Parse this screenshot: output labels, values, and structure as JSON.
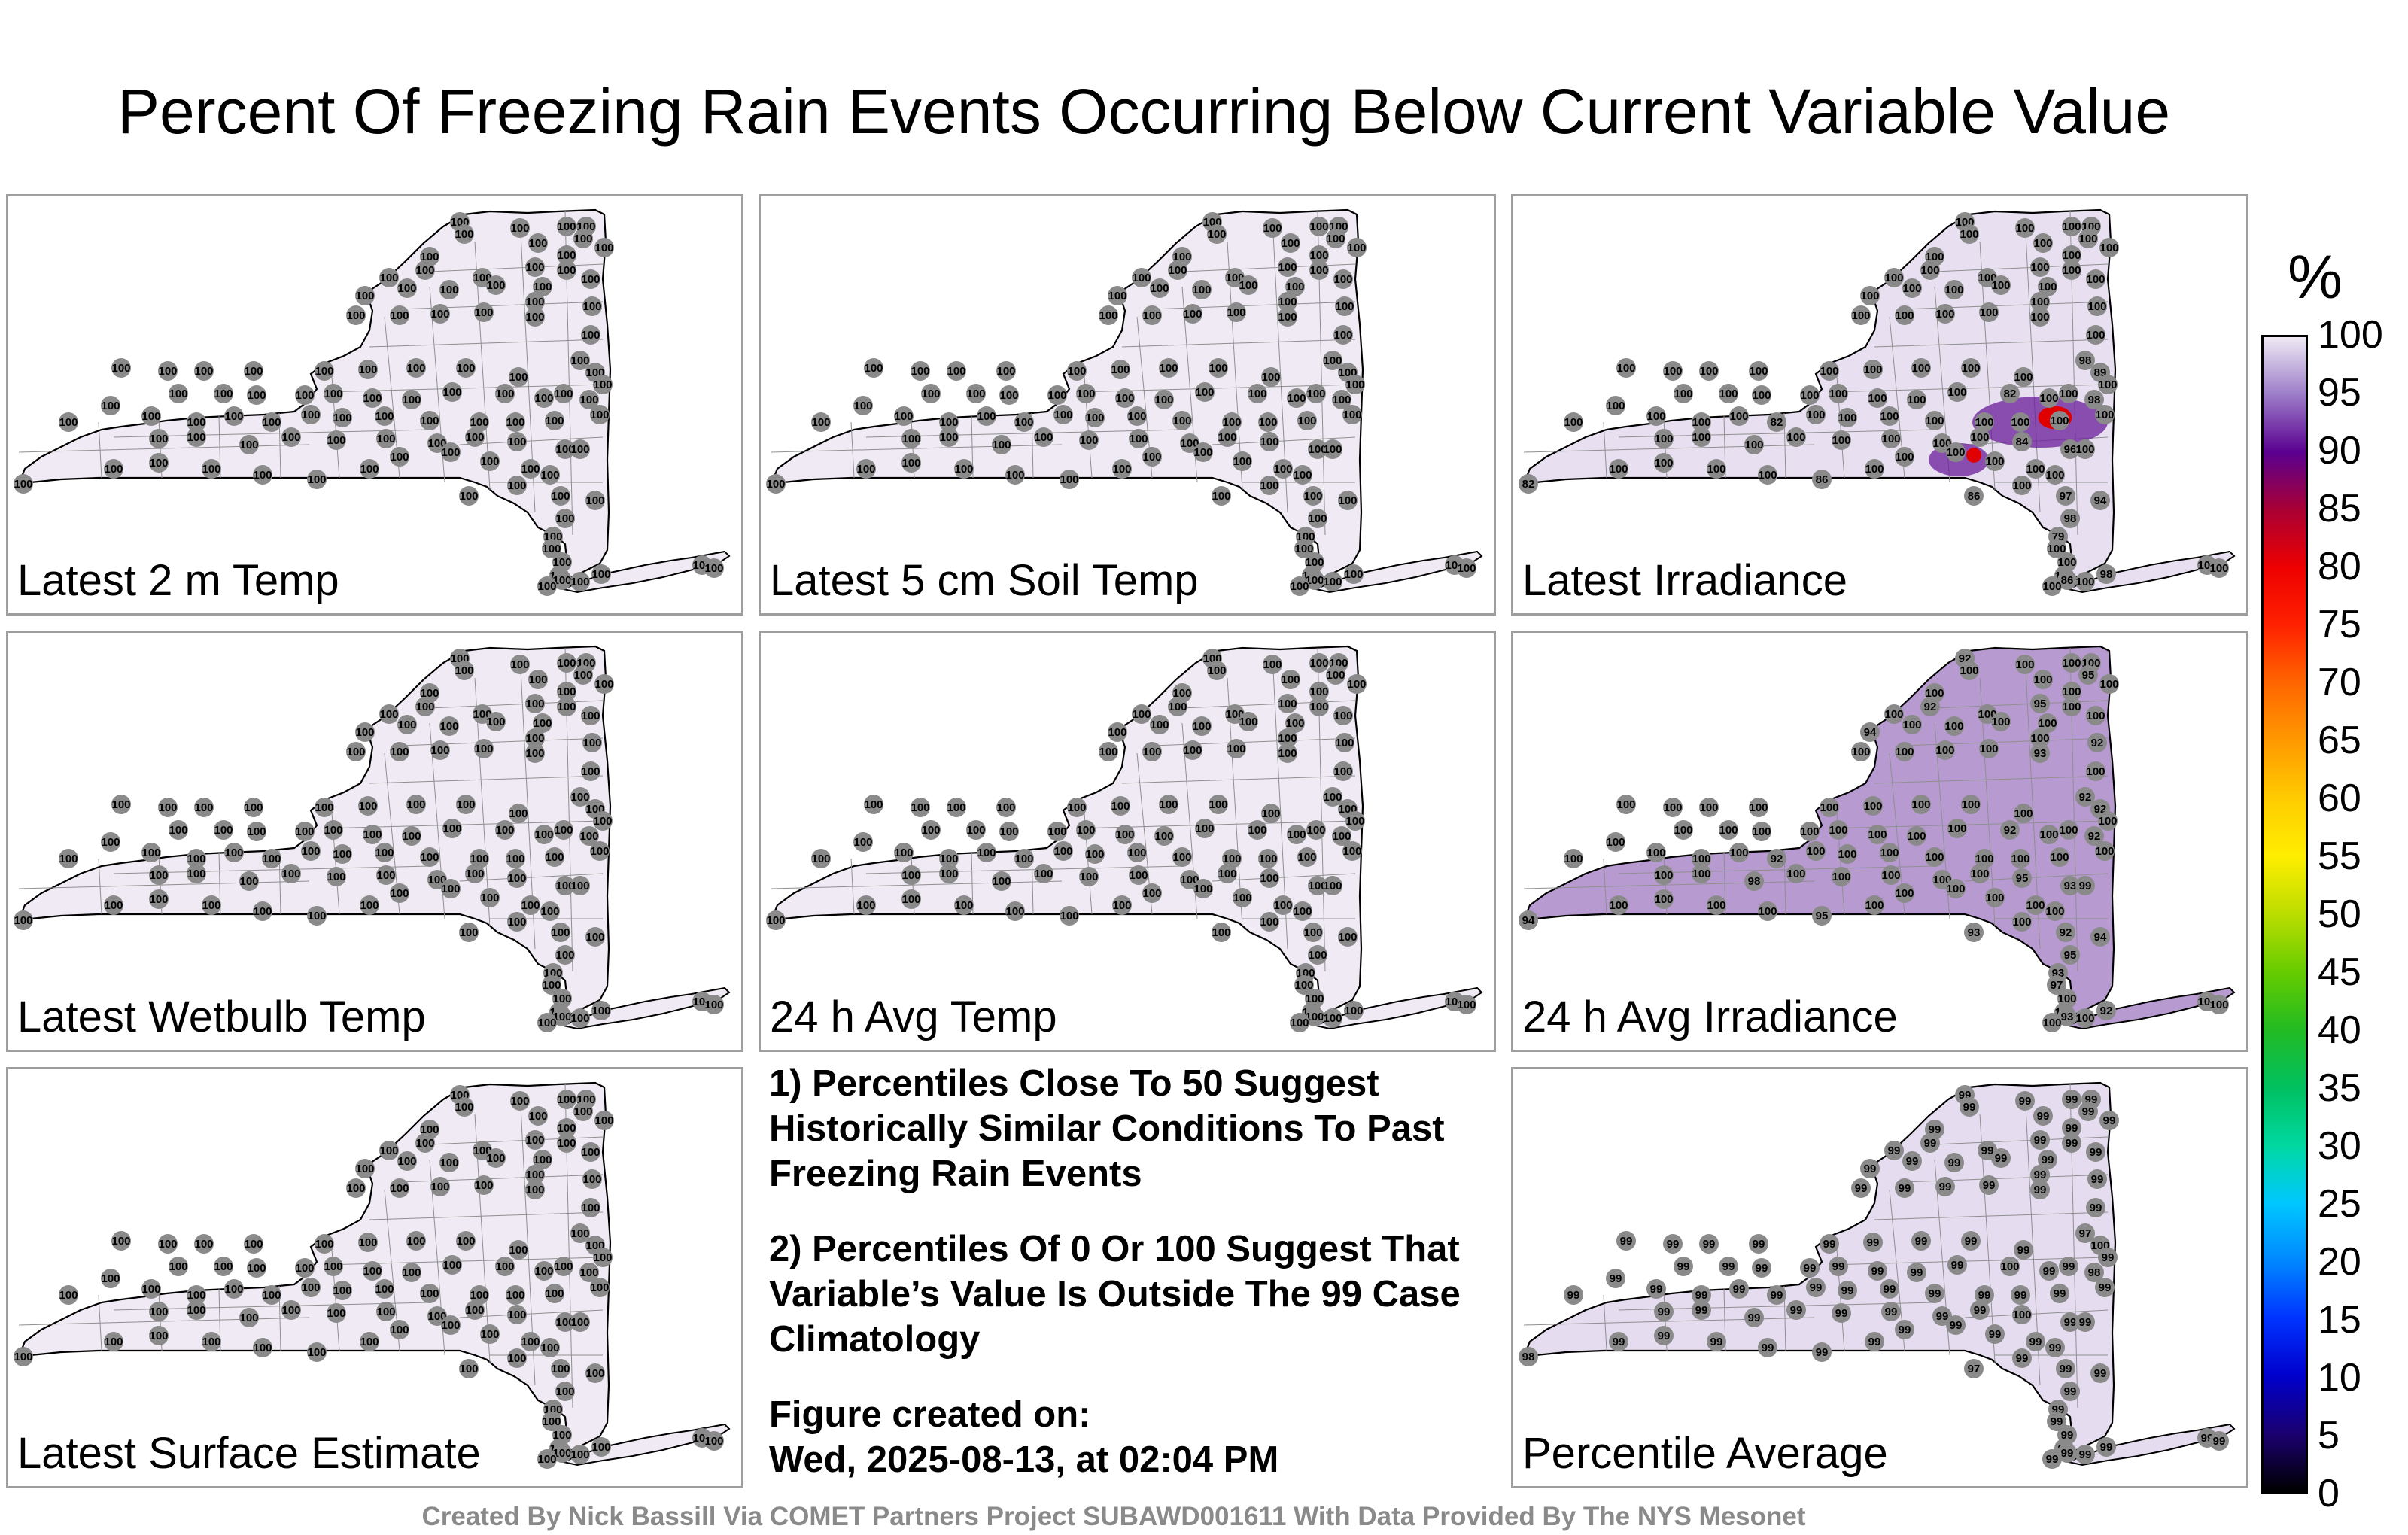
{
  "title": "Percent Of Freezing Rain Events Occurring Below Current Variable Value",
  "colors": {
    "state_fill_default": "#efeaf4",
    "marker": "#8a8a8a",
    "outline": "#000000",
    "county_lines": "#8f8f8f"
  },
  "panels": [
    {
      "label": "Latest 2 m Temp",
      "default_value": "100",
      "fill": "#efeaf4",
      "overrides": [],
      "hotspots": []
    },
    {
      "label": "Latest 5 cm Soil Temp",
      "default_value": "100",
      "fill": "#efeaf4",
      "overrides": [],
      "hotspots": []
    },
    {
      "label": "Latest Irradiance",
      "default_value": "100",
      "fill": "#e8e0f0",
      "overrides": [
        [
          "A",
          "89"
        ],
        [
          "B",
          "98"
        ],
        [
          "C",
          "98"
        ],
        [
          "D",
          "82"
        ],
        [
          "E",
          "86"
        ],
        [
          "F",
          "84"
        ],
        [
          "G",
          "82"
        ],
        [
          "H",
          "96"
        ],
        [
          "I",
          "82"
        ],
        [
          "J",
          "86"
        ],
        [
          "K",
          "86"
        ],
        [
          "L",
          "98"
        ],
        [
          "M",
          "94"
        ],
        [
          "N",
          "97"
        ],
        [
          "O",
          "79"
        ],
        [
          "P",
          "98"
        ]
      ],
      "hotspots": [
        "mid-hudson",
        "lower-hudson"
      ]
    },
    {
      "label": "Latest Wetbulb Temp",
      "default_value": "100",
      "fill": "#efeaf4",
      "overrides": [],
      "hotspots": []
    },
    {
      "label": "24 h Avg Temp",
      "default_value": "100",
      "fill": "#efeaf4",
      "overrides": [],
      "hotspots": []
    },
    {
      "label": "24 h Avg Irradiance",
      "default_value": "100",
      "fill": "#b79ad0",
      "overrides": [
        [
          "A",
          "92"
        ],
        [
          "B",
          "92"
        ],
        [
          "C",
          "92"
        ],
        [
          "D",
          "92"
        ],
        [
          "E",
          "93"
        ],
        [
          "F",
          "95"
        ],
        [
          "G",
          "94"
        ],
        [
          "H",
          "93"
        ],
        [
          "I",
          "92"
        ],
        [
          "J",
          "93"
        ],
        [
          "K",
          "95"
        ],
        [
          "L",
          "92"
        ],
        [
          "M",
          "94"
        ],
        [
          "N",
          "92"
        ],
        [
          "O",
          "93"
        ],
        [
          "P",
          "95"
        ],
        [
          "Q",
          "92"
        ],
        [
          "R",
          "94"
        ],
        [
          "S",
          "92"
        ],
        [
          "T",
          "93"
        ],
        [
          "U",
          "95"
        ],
        [
          "V",
          "97"
        ],
        [
          "W",
          "92"
        ],
        [
          "X",
          "95"
        ],
        [
          "Y",
          "98"
        ],
        [
          "Z",
          "99"
        ]
      ],
      "hotspots": []
    },
    {
      "label": "Percentile Average",
      "default_value": "99",
      "fill": "#e5dcef",
      "overrides": [
        [
          "A",
          "100"
        ],
        [
          "B",
          "97"
        ],
        [
          "C",
          "98"
        ],
        [
          "D",
          "100"
        ],
        [
          "E",
          "97"
        ],
        [
          "F",
          "100"
        ],
        [
          "G",
          "98"
        ]
      ],
      "hotspots": []
    }
  ],
  "notes": [
    "1) Percentiles Close To 50 Suggest Historically Similar Conditions To Past Freezing Rain Events",
    "2) Percentiles Of 0 Or 100 Suggest That Variable’s Value Is Outside The 99 Case Climatology",
    "Figure created on:",
    "Wed, 2025-08-13, at 02:04 PM"
  ],
  "footer": "Created By Nick Bassill Via COMET Partners Project SUBAWD001611 With Data Provided By The NYS Mesonet",
  "colorbar": {
    "unit": "%",
    "ticks": [
      "100",
      "95",
      "90",
      "85",
      "80",
      "75",
      "70",
      "65",
      "60",
      "55",
      "50",
      "45",
      "40",
      "35",
      "30",
      "25",
      "20",
      "15",
      "10",
      "5",
      "0"
    ],
    "stops": [
      [
        0,
        "#000000"
      ],
      [
        5,
        "#1a0070"
      ],
      [
        10,
        "#0000cc"
      ],
      [
        15,
        "#0033ff"
      ],
      [
        20,
        "#0088ff"
      ],
      [
        25,
        "#00c8ff"
      ],
      [
        30,
        "#00d8a0"
      ],
      [
        35,
        "#00c060"
      ],
      [
        40,
        "#22bb22"
      ],
      [
        45,
        "#66cc00"
      ],
      [
        50,
        "#bbdd00"
      ],
      [
        55,
        "#ffee00"
      ],
      [
        60,
        "#ffcc00"
      ],
      [
        65,
        "#ff9900"
      ],
      [
        70,
        "#ff6600"
      ],
      [
        75,
        "#ff2200"
      ],
      [
        80,
        "#ee0000"
      ],
      [
        85,
        "#aa0033"
      ],
      [
        90,
        "#5a0090"
      ],
      [
        95,
        "#9c7cc8"
      ],
      [
        100,
        "#efeaf4"
      ]
    ]
  }
}
